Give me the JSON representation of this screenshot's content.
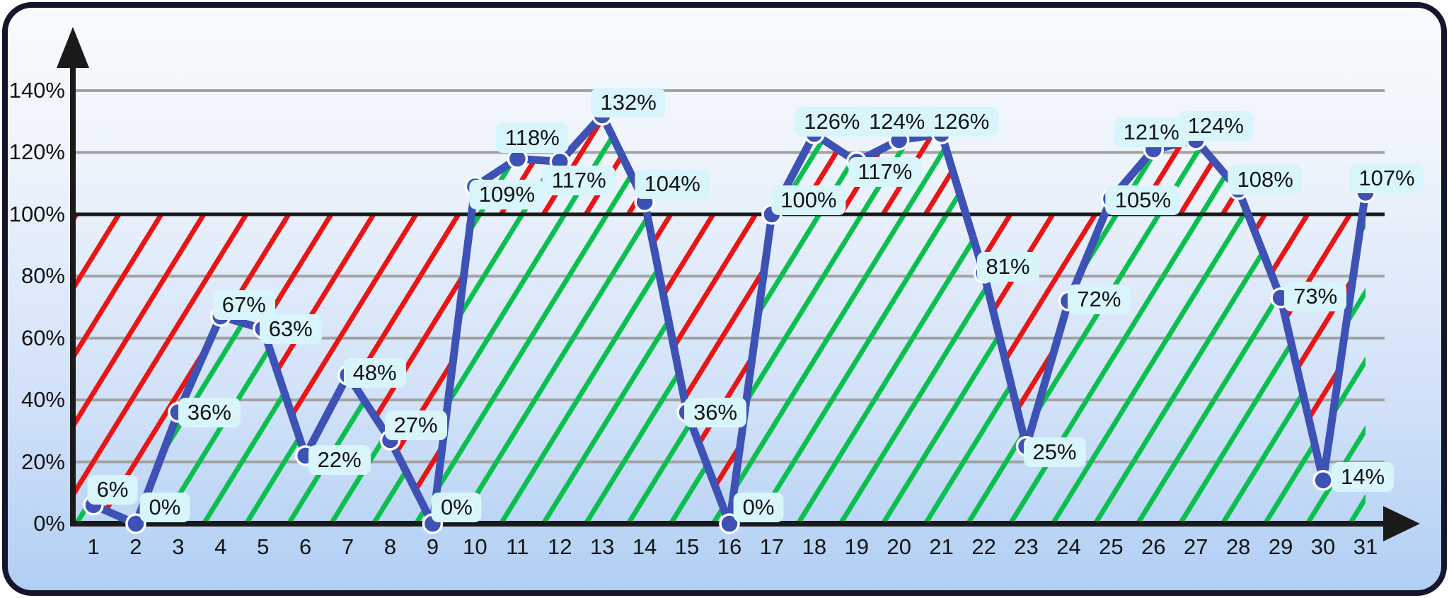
{
  "panel": {
    "border_color": "#15152b",
    "background_top": "#f8fbfe",
    "background_bottom": "#b0cff4"
  },
  "chart_data": {
    "type": "line",
    "title": "",
    "xlabel": "",
    "ylabel": "",
    "x_tick_labels": [
      "1",
      "2",
      "3",
      "4",
      "5",
      "6",
      "7",
      "8",
      "9",
      "10",
      "11",
      "12",
      "13",
      "14",
      "15",
      "16",
      "17",
      "18",
      "19",
      "20",
      "21",
      "22",
      "23",
      "24",
      "25",
      "26",
      "27",
      "28",
      "29",
      "30",
      "31"
    ],
    "values": [
      6,
      0,
      36,
      67,
      63,
      22,
      48,
      27,
      0,
      109,
      118,
      117,
      132,
      104,
      36,
      0,
      100,
      126,
      117,
      124,
      126,
      81,
      25,
      72,
      105,
      121,
      124,
      108,
      73,
      14,
      107
    ],
    "point_labels": [
      "6%",
      "0%",
      "36%",
      "67%",
      "63%",
      "22%",
      "48%",
      "27%",
      "0%",
      "109%",
      "118%",
      "117%",
      "132%",
      "104%",
      "36%",
      "0%",
      "100%",
      "126%",
      "117%",
      "124%",
      "126%",
      "81%",
      "25%",
      "72%",
      "105%",
      "121%",
      "124%",
      "108%",
      "73%",
      "14%",
      "107%"
    ],
    "y_tick_labels": [
      "0%",
      "20%",
      "40%",
      "60%",
      "80%",
      "100%",
      "120%",
      "140%"
    ],
    "y_tick_values": [
      0,
      20,
      40,
      60,
      80,
      100,
      120,
      140
    ],
    "ylim": [
      0,
      150
    ],
    "target_line_value": 100,
    "grid": true,
    "legend": "none",
    "hatch_semantics": {
      "green_hatch": "area-under-data-line",
      "red_hatch": "gap-between-data-line-and-100%-target"
    },
    "colors": {
      "series": "#3d52b4",
      "marker_ring": "#ffffff",
      "target_line": "#1a1a1a",
      "axis": "#1a1a1a",
      "grid": "#a3a3a3",
      "achieved_hatch": "#0abf4e",
      "shortfall_hatch": "#e91515",
      "label_bubble_bg": "#d8f5fb",
      "label_text": "#141414"
    },
    "label_placement": [
      [
        27,
        -22
      ],
      [
        41,
        -23
      ],
      [
        44,
        0
      ],
      [
        33,
        -16
      ],
      [
        39,
        0
      ],
      [
        48,
        6
      ],
      [
        38,
        -3
      ],
      [
        36,
        -21
      ],
      [
        34,
        -23
      ],
      [
        45,
        11
      ],
      [
        21,
        -29
      ],
      [
        27,
        26
      ],
      [
        37,
        -18
      ],
      [
        39,
        -25
      ],
      [
        40,
        0
      ],
      [
        41,
        -23
      ],
      [
        52,
        -20
      ],
      [
        25,
        -17
      ],
      [
        40,
        14
      ],
      [
        -3,
        -26
      ],
      [
        28,
        -17
      ],
      [
        34,
        -9
      ],
      [
        40,
        8
      ],
      [
        43,
        -2
      ],
      [
        45,
        2
      ],
      [
        -3,
        -24
      ],
      [
        28,
        -20
      ],
      [
        38,
        -14
      ],
      [
        49,
        -2
      ],
      [
        56,
        -5
      ],
      [
        30,
        -20
      ]
    ]
  }
}
